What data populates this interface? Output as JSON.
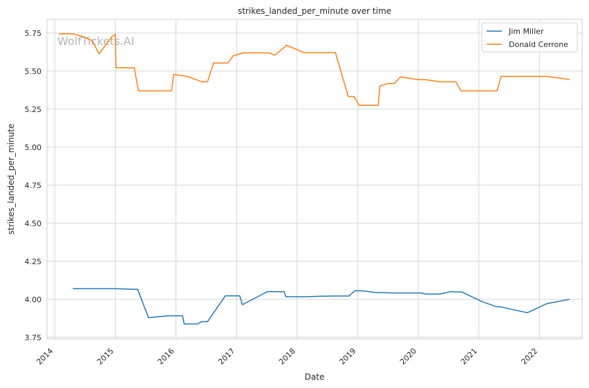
{
  "watermark": "WolfTickets.AI",
  "chart_data": {
    "type": "line",
    "title": "strikes_landed_per_minute over time",
    "xlabel": "Date",
    "ylabel": "strikes_landed_per_minute",
    "x_ticks": [
      "2014",
      "2015",
      "2016",
      "2017",
      "2018",
      "2019",
      "2020",
      "2021",
      "2022"
    ],
    "y_ticks": [
      "3.75",
      "4.00",
      "4.25",
      "4.50",
      "4.75",
      "5.00",
      "5.25",
      "5.50",
      "5.75"
    ],
    "xlim": [
      "2013-11-15",
      "2022-09-15"
    ],
    "ylim": [
      3.74,
      5.84
    ],
    "grid": true,
    "legend_position": "top-right",
    "series": [
      {
        "name": "Jim Miller",
        "color": "#1f77b4",
        "points": [
          [
            "2014-04-20",
            4.07
          ],
          [
            "2014-12-30",
            4.07
          ],
          [
            "2015-04-15",
            4.066
          ],
          [
            "2015-05-15",
            4.066
          ],
          [
            "2015-07-20",
            3.88
          ],
          [
            "2015-11-15",
            3.892
          ],
          [
            "2016-02-10",
            3.892
          ],
          [
            "2016-02-20",
            3.838
          ],
          [
            "2016-05-10",
            3.838
          ],
          [
            "2016-06-05",
            3.853
          ],
          [
            "2016-07-10",
            3.853
          ],
          [
            "2016-10-25",
            4.023
          ],
          [
            "2017-01-20",
            4.023
          ],
          [
            "2017-02-05",
            3.965
          ],
          [
            "2017-07-05",
            4.05
          ],
          [
            "2017-10-15",
            4.05
          ],
          [
            "2017-10-25",
            4.017
          ],
          [
            "2018-02-10",
            4.017
          ],
          [
            "2018-05-10",
            4.02
          ],
          [
            "2018-08-15",
            4.022
          ],
          [
            "2018-11-10",
            4.022
          ],
          [
            "2018-12-15",
            4.057
          ],
          [
            "2019-02-10",
            4.055
          ],
          [
            "2019-04-15",
            4.045
          ],
          [
            "2019-08-10",
            4.042
          ],
          [
            "2020-01-15",
            4.042
          ],
          [
            "2020-02-15",
            4.035
          ],
          [
            "2020-05-15",
            4.035
          ],
          [
            "2020-07-10",
            4.05
          ],
          [
            "2020-09-20",
            4.048
          ],
          [
            "2021-01-20",
            3.985
          ],
          [
            "2021-04-15",
            3.952
          ],
          [
            "2021-05-15",
            3.95
          ],
          [
            "2021-10-20",
            3.912
          ],
          [
            "2022-02-15",
            3.972
          ],
          [
            "2022-07-01",
            4.0
          ]
        ]
      },
      {
        "name": "Donald Cerrone",
        "color": "#ff7f0e",
        "points": [
          [
            "2014-01-25",
            5.745
          ],
          [
            "2014-04-20",
            5.745
          ],
          [
            "2014-06-15",
            5.728
          ],
          [
            "2014-08-15",
            5.7
          ],
          [
            "2014-09-25",
            5.613
          ],
          [
            "2014-12-10",
            5.725
          ],
          [
            "2015-01-01",
            5.743
          ],
          [
            "2015-01-05",
            5.522
          ],
          [
            "2015-04-25",
            5.522
          ],
          [
            "2015-05-20",
            5.37
          ],
          [
            "2015-12-05",
            5.37
          ],
          [
            "2015-12-20",
            5.478
          ],
          [
            "2016-03-10",
            5.465
          ],
          [
            "2016-06-05",
            5.43
          ],
          [
            "2016-07-10",
            5.43
          ],
          [
            "2016-08-15",
            5.553
          ],
          [
            "2016-11-10",
            5.553
          ],
          [
            "2016-12-10",
            5.6
          ],
          [
            "2017-02-10",
            5.62
          ],
          [
            "2017-07-15",
            5.62
          ],
          [
            "2017-08-20",
            5.605
          ],
          [
            "2017-10-30",
            5.67
          ],
          [
            "2018-02-10",
            5.622
          ],
          [
            "2018-08-20",
            5.622
          ],
          [
            "2018-11-05",
            5.333
          ],
          [
            "2018-12-10",
            5.333
          ],
          [
            "2019-01-10",
            5.275
          ],
          [
            "2019-05-05",
            5.275
          ],
          [
            "2019-05-15",
            5.402
          ],
          [
            "2019-06-30",
            5.418
          ],
          [
            "2019-08-10",
            5.418
          ],
          [
            "2019-09-15",
            5.462
          ],
          [
            "2020-01-10",
            5.443
          ],
          [
            "2020-02-15",
            5.443
          ],
          [
            "2020-05-10",
            5.43
          ],
          [
            "2020-08-15",
            5.43
          ],
          [
            "2020-09-15",
            5.37
          ],
          [
            "2021-04-20",
            5.37
          ],
          [
            "2021-05-15",
            5.465
          ],
          [
            "2022-02-15",
            5.465
          ],
          [
            "2022-07-01",
            5.445
          ]
        ]
      }
    ]
  }
}
